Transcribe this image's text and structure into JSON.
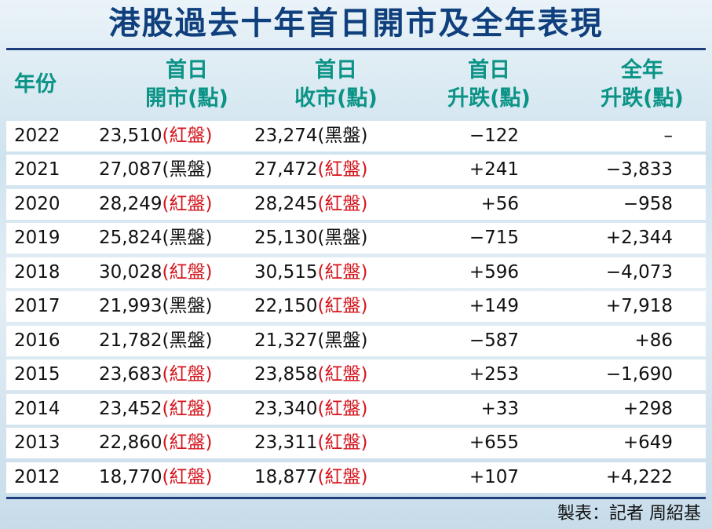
{
  "title": "港股過去十年首日開市及全年表現",
  "headers": {
    "year": "年份",
    "open_1": "首日",
    "open_2": "開市(點)",
    "close_1": "首日",
    "close_2": "收市(點)",
    "dayChange_1": "首日",
    "dayChange_2": "升跌(點)",
    "yearChange_1": "全年",
    "yearChange_2": "升跌(點)"
  },
  "rows": [
    {
      "year": "2022",
      "open": "23,510",
      "open_tag": "(紅盤)",
      "open_color": "red",
      "close": "23,274",
      "close_tag": "(黑盤)",
      "close_color": "black",
      "day": "−122",
      "full": "–"
    },
    {
      "year": "2021",
      "open": "27,087",
      "open_tag": "(黑盤)",
      "open_color": "black",
      "close": "27,472",
      "close_tag": "(紅盤)",
      "close_color": "red",
      "day": "+241",
      "full": "−3,833"
    },
    {
      "year": "2020",
      "open": "28,249",
      "open_tag": "(紅盤)",
      "open_color": "red",
      "close": "28,245",
      "close_tag": "(紅盤)",
      "close_color": "red",
      "day": "+56",
      "full": "−958"
    },
    {
      "year": "2019",
      "open": "25,824",
      "open_tag": "(黑盤)",
      "open_color": "black",
      "close": "25,130",
      "close_tag": "(黑盤)",
      "close_color": "black",
      "day": "−715",
      "full": "+2,344"
    },
    {
      "year": "2018",
      "open": "30,028",
      "open_tag": "(紅盤)",
      "open_color": "red",
      "close": "30,515",
      "close_tag": "(紅盤)",
      "close_color": "red",
      "day": "+596",
      "full": "−4,073"
    },
    {
      "year": "2017",
      "open": "21,993",
      "open_tag": "(黑盤)",
      "open_color": "black",
      "close": "22,150",
      "close_tag": "(紅盤)",
      "close_color": "red",
      "day": "+149",
      "full": "+7,918"
    },
    {
      "year": "2016",
      "open": "21,782",
      "open_tag": "(黑盤)",
      "open_color": "black",
      "close": "21,327",
      "close_tag": "(黑盤)",
      "close_color": "black",
      "day": "−587",
      "full": "+86"
    },
    {
      "year": "2015",
      "open": "23,683",
      "open_tag": "(紅盤)",
      "open_color": "red",
      "close": "23,858",
      "close_tag": "(紅盤)",
      "close_color": "red",
      "day": "+253",
      "full": "−1,690"
    },
    {
      "year": "2014",
      "open": "23,452",
      "open_tag": "(紅盤)",
      "open_color": "red",
      "close": "23,340",
      "close_tag": "(紅盤)",
      "close_color": "red",
      "day": "+33",
      "full": "+298"
    },
    {
      "year": "2013",
      "open": "22,860",
      "open_tag": "(紅盤)",
      "open_color": "red",
      "close": "23,311",
      "close_tag": "(紅盤)",
      "close_color": "red",
      "day": "+655",
      "full": "+649"
    },
    {
      "year": "2012",
      "open": "18,770",
      "open_tag": "(紅盤)",
      "open_color": "red",
      "close": "18,877",
      "close_tag": "(紅盤)",
      "close_color": "red",
      "day": "+107",
      "full": "+4,222"
    }
  ],
  "credit": "製表：記者 周紹基",
  "colors": {
    "header_text": "#0b9486",
    "title": "#0f3f7c",
    "red": "#d4141c",
    "rule": "#1c3e7a"
  }
}
